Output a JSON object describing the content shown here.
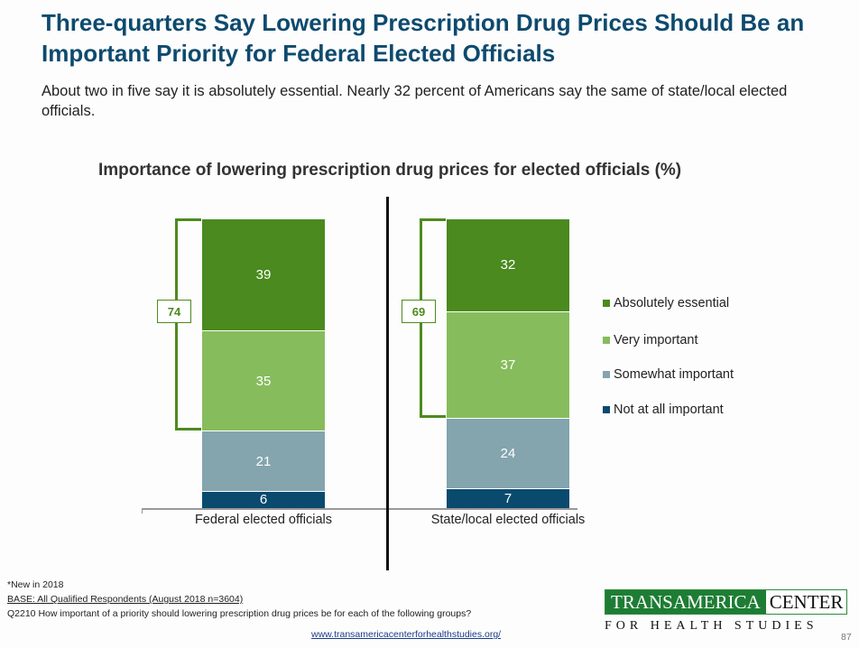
{
  "title": "Three-quarters Say Lowering Prescription Drug Prices Should Be an Important Priority for Federal Elected Officials",
  "subtitle": "About two in five say it is absolutely essential. Nearly 32 percent of Americans say the same of state/local elected officials.",
  "chart_data": {
    "type": "bar",
    "stacked": true,
    "title": "Importance of lowering prescription drug prices for elected officials (%)",
    "categories": [
      "Federal elected officials",
      "State/local elected officials"
    ],
    "series": [
      {
        "name": "Absolutely essential",
        "color": "#4a8a1e",
        "values": [
          39,
          32
        ]
      },
      {
        "name": "Very important",
        "color": "#86bc5c",
        "values": [
          35,
          37
        ]
      },
      {
        "name": "Somewhat important",
        "color": "#84a4ae",
        "values": [
          21,
          24
        ]
      },
      {
        "name": "Not at all important",
        "color": "#0a4a6e",
        "values": [
          6,
          7
        ]
      }
    ],
    "totals": {
      "label": "Absolutely essential + Very important",
      "values": [
        74,
        69
      ]
    },
    "legend_position": "right"
  },
  "footer": {
    "note": "*New in 2018",
    "base": "BASE: All Qualified Respondents (August 2018 n=3604)",
    "question": "Q2210 How important of a priority should lowering prescription drug prices be for each of the following groups?",
    "url": "www.transamericacenterforhealthstudies.org/",
    "page": "87"
  },
  "logo": {
    "line1a": "TRANSAMERICA",
    "line1b": "CENTER",
    "line2": "FOR HEALTH STUDIES"
  }
}
